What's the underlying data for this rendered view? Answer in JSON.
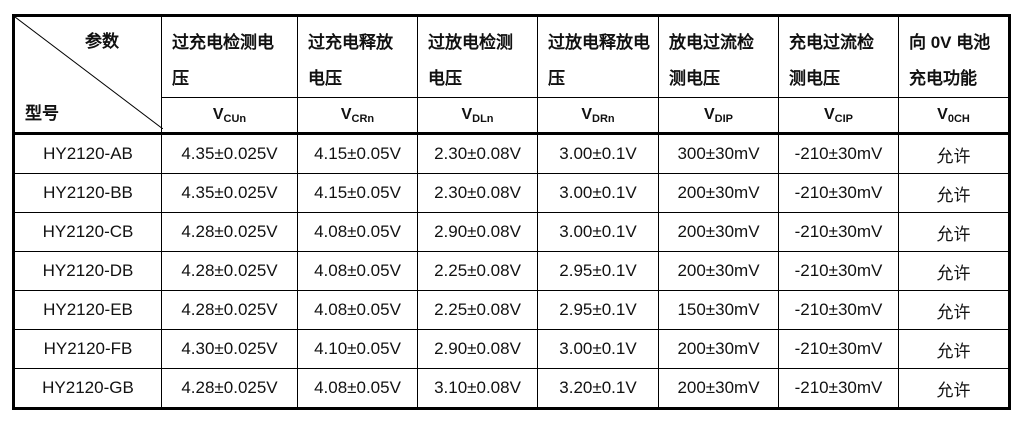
{
  "corner": {
    "param": "参数",
    "model": "型号"
  },
  "columns": [
    {
      "name": "过充电检测电压",
      "symbol": "V",
      "sub": "CUn"
    },
    {
      "name": "过充电释放电压",
      "symbol": "V",
      "sub": "CRn"
    },
    {
      "name": "过放电检测电压",
      "symbol": "V",
      "sub": "DLn"
    },
    {
      "name": "过放电释放电压",
      "symbol": "V",
      "sub": "DRn"
    },
    {
      "name": "放电过流检测电压",
      "symbol": "V",
      "sub": "DIP"
    },
    {
      "name": "充电过流检测电压",
      "symbol": "V",
      "sub": "CIP"
    },
    {
      "name": "向 0V 电池充电功能",
      "symbol": "V",
      "sub": "0CH"
    }
  ],
  "rows": [
    [
      "HY2120-AB",
      "4.35±0.025V",
      "4.15±0.05V",
      "2.30±0.08V",
      "3.00±0.1V",
      "300±30mV",
      "-210±30mV",
      "允许"
    ],
    [
      "HY2120-BB",
      "4.35±0.025V",
      "4.15±0.05V",
      "2.30±0.08V",
      "3.00±0.1V",
      "200±30mV",
      "-210±30mV",
      "允许"
    ],
    [
      "HY2120-CB",
      "4.28±0.025V",
      "4.08±0.05V",
      "2.90±0.08V",
      "3.00±0.1V",
      "200±30mV",
      "-210±30mV",
      "允许"
    ],
    [
      "HY2120-DB",
      "4.28±0.025V",
      "4.08±0.05V",
      "2.25±0.08V",
      "2.95±0.1V",
      "200±30mV",
      "-210±30mV",
      "允许"
    ],
    [
      "HY2120-EB",
      "4.28±0.025V",
      "4.08±0.05V",
      "2.25±0.08V",
      "2.95±0.1V",
      "150±30mV",
      "-210±30mV",
      "允许"
    ],
    [
      "HY2120-FB",
      "4.30±0.025V",
      "4.10±0.05V",
      "2.90±0.08V",
      "3.00±0.1V",
      "200±30mV",
      "-210±30mV",
      "允许"
    ],
    [
      "HY2120-GB",
      "4.28±0.025V",
      "4.08±0.05V",
      "3.10±0.08V",
      "3.20±0.1V",
      "200±30mV",
      "-210±30mV",
      "允许"
    ]
  ]
}
